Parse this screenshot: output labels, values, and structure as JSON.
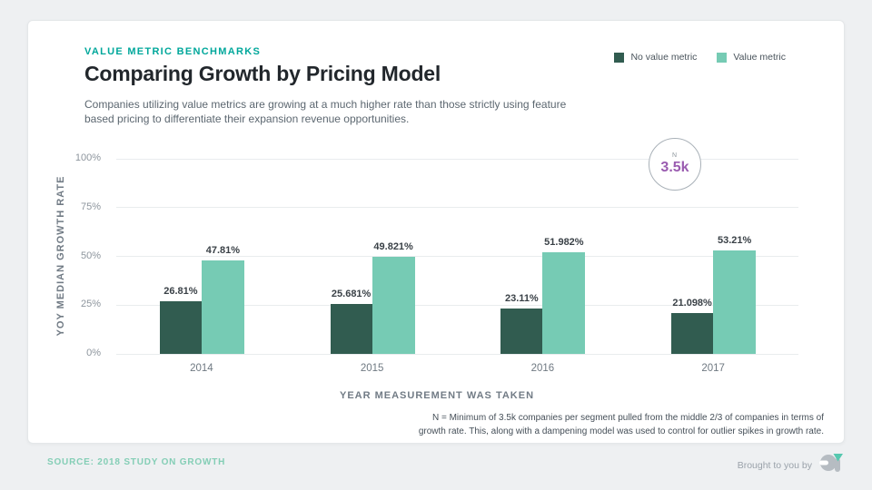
{
  "page": {
    "eyebrow": "VALUE METRIC BENCHMARKS",
    "title": "Comparing Growth by Pricing Model",
    "subtitle_line1": "Companies utilizing value metrics are growing at a much higher rate than those strictly using feature",
    "subtitle_line2": "based pricing to differentiate their expansion revenue opportunities."
  },
  "legend": [
    {
      "label": "No value metric",
      "color": "#315c50"
    },
    {
      "label": "Value metric",
      "color": "#76cbb4"
    }
  ],
  "badge": {
    "top_label": "N",
    "value": "3.5k",
    "value_color": "#9a5cb0"
  },
  "chart_data": {
    "type": "bar",
    "categories": [
      "2014",
      "2015",
      "2016",
      "2017"
    ],
    "series": [
      {
        "name": "No value metric",
        "color": "#315c50",
        "values": [
          26.81,
          25.681,
          23.11,
          21.098
        ],
        "labels": [
          "26.81%",
          "25.681%",
          "23.11%",
          "21.098%"
        ]
      },
      {
        "name": "Value metric",
        "color": "#76cbb4",
        "values": [
          47.81,
          49.821,
          51.982,
          53.21
        ],
        "labels": [
          "47.81%",
          "49.821%",
          "51.982%",
          "53.21%"
        ]
      }
    ],
    "title": "Comparing Growth by Pricing Model",
    "xlabel": "YEAR MEASUREMENT WAS TAKEN",
    "ylabel": "YOY MEDIAN GROWTH RATE",
    "ylim": [
      0,
      100
    ],
    "yticks": [
      0,
      25,
      50,
      75,
      100
    ],
    "ytick_labels": [
      "0%",
      "25%",
      "50%",
      "75%",
      "100%"
    ],
    "grid": true,
    "legend_position": "top-right"
  },
  "footnote": {
    "line1": "N = Minimum of 3.5k companies per segment pulled from the middle 2/3 of companies in terms of",
    "line2": "growth rate. This, along with a dampening model was used to control for outlier spikes in growth rate."
  },
  "footer": {
    "source": "SOURCE: 2018 STUDY ON GROWTH",
    "brought": "Brought to you by",
    "logo": "profitwell-logo"
  }
}
